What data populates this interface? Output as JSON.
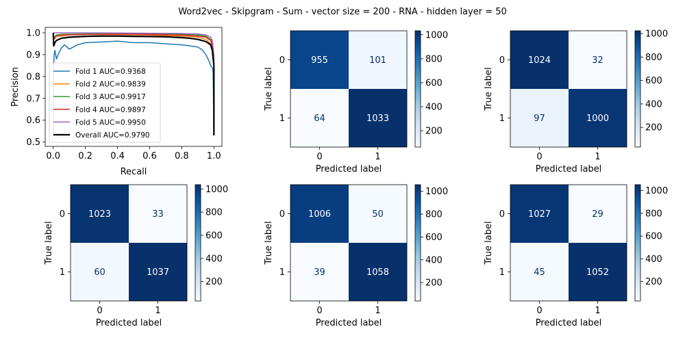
{
  "title": "Word2vec - Skipgram - Sum - vector size = 200 - RNA - hidden layer = 50",
  "chart_data": [
    {
      "type": "line",
      "xlabel": "Recall",
      "ylabel": "Precision",
      "xlim": [
        -0.05,
        1.05
      ],
      "ylim": [
        0.48,
        1.025
      ],
      "xticks": [
        "0.0",
        "0.2",
        "0.4",
        "0.6",
        "0.8",
        "1.0"
      ],
      "yticks": [
        "0.5",
        "0.6",
        "0.7",
        "0.8",
        "0.9",
        "1.0"
      ],
      "legend_position": "lower-left",
      "series": [
        {
          "name": "Fold 1 AUC=0.9368",
          "color": "#1f77b4",
          "x": [
            0.0,
            0.003,
            0.006,
            0.01,
            0.02,
            0.03,
            0.05,
            0.07,
            0.1,
            0.15,
            0.2,
            0.3,
            0.4,
            0.5,
            0.6,
            0.7,
            0.8,
            0.85,
            0.9,
            0.93,
            0.95,
            0.97,
            0.98,
            0.99,
            0.995,
            1.0
          ],
          "y": [
            0.53,
            0.86,
            0.9,
            0.92,
            0.88,
            0.9,
            0.93,
            0.945,
            0.925,
            0.945,
            0.955,
            0.958,
            0.962,
            0.955,
            0.955,
            0.95,
            0.945,
            0.94,
            0.935,
            0.92,
            0.9,
            0.87,
            0.85,
            0.84,
            0.82,
            0.53
          ]
        },
        {
          "name": "Fold 2 AUC=0.9839",
          "color": "#ff7f0e",
          "x": [
            0.0,
            0.005,
            0.02,
            0.05,
            0.1,
            0.2,
            0.4,
            0.6,
            0.8,
            0.9,
            0.95,
            0.98,
            0.99,
            1.0,
            1.0
          ],
          "y": [
            1.0,
            0.97,
            0.985,
            0.985,
            0.99,
            0.992,
            0.992,
            0.99,
            0.985,
            0.98,
            0.97,
            0.95,
            0.93,
            0.85,
            0.53
          ]
        },
        {
          "name": "Fold 3 AUC=0.9917",
          "color": "#2ca02c",
          "x": [
            0.0,
            0.005,
            0.02,
            0.05,
            0.2,
            0.4,
            0.6,
            0.8,
            0.9,
            0.95,
            0.98,
            0.99,
            1.0,
            1.0
          ],
          "y": [
            1.0,
            0.98,
            0.99,
            0.993,
            0.995,
            0.996,
            0.995,
            0.993,
            0.99,
            0.985,
            0.97,
            0.95,
            0.88,
            0.53
          ]
        },
        {
          "name": "Fold 4 AUC=0.9897",
          "color": "#d62728",
          "x": [
            0.0,
            0.005,
            0.02,
            0.05,
            0.2,
            0.4,
            0.6,
            0.8,
            0.9,
            0.95,
            0.98,
            0.99,
            1.0,
            1.0
          ],
          "y": [
            1.0,
            0.97,
            0.985,
            0.99,
            0.993,
            0.994,
            0.993,
            0.99,
            0.985,
            0.98,
            0.965,
            0.94,
            0.86,
            0.53
          ]
        },
        {
          "name": "Fold 5 AUC=0.9950",
          "color": "#9467bd",
          "x": [
            0.0,
            0.01,
            0.05,
            0.2,
            0.4,
            0.6,
            0.8,
            0.9,
            0.95,
            0.98,
            0.99,
            1.0,
            1.0
          ],
          "y": [
            1.0,
            1.0,
            1.0,
            1.0,
            0.999,
            0.998,
            0.997,
            0.995,
            0.99,
            0.98,
            0.965,
            0.9,
            0.53
          ]
        },
        {
          "name": "Overall AUC=0.9790",
          "color": "#000000",
          "x": [
            0.0,
            0.003,
            0.01,
            0.02,
            0.05,
            0.1,
            0.2,
            0.3,
            0.4,
            0.5,
            0.6,
            0.7,
            0.8,
            0.85,
            0.9,
            0.95,
            0.98,
            0.99,
            1.0,
            1.0
          ],
          "y": [
            1.0,
            0.94,
            0.955,
            0.965,
            0.975,
            0.98,
            0.984,
            0.985,
            0.985,
            0.984,
            0.983,
            0.982,
            0.978,
            0.975,
            0.97,
            0.96,
            0.945,
            0.92,
            0.85,
            0.53
          ]
        }
      ]
    },
    {
      "type": "heatmap",
      "xlabel": "Predicted label",
      "ylabel": "True label",
      "categories": [
        "0",
        "1"
      ],
      "values": [
        [
          955,
          101
        ],
        [
          64,
          1033
        ]
      ],
      "colorbar_ticks": [
        200,
        400,
        600,
        800,
        1000
      ]
    },
    {
      "type": "heatmap",
      "xlabel": "Predicted label",
      "ylabel": "True label",
      "categories": [
        "0",
        "1"
      ],
      "values": [
        [
          1024,
          32
        ],
        [
          97,
          1000
        ]
      ],
      "colorbar_ticks": [
        200,
        400,
        600,
        800,
        1000
      ]
    },
    {
      "type": "heatmap",
      "xlabel": "Predicted label",
      "ylabel": "True label",
      "categories": [
        "0",
        "1"
      ],
      "values": [
        [
          1023,
          33
        ],
        [
          60,
          1037
        ]
      ],
      "colorbar_ticks": [
        200,
        400,
        600,
        800,
        1000
      ]
    },
    {
      "type": "heatmap",
      "xlabel": "Predicted label",
      "ylabel": "True label",
      "categories": [
        "0",
        "1"
      ],
      "values": [
        [
          1006,
          50
        ],
        [
          39,
          1058
        ]
      ],
      "colorbar_ticks": [
        200,
        400,
        600,
        800,
        1000
      ]
    },
    {
      "type": "heatmap",
      "xlabel": "Predicted label",
      "ylabel": "True label",
      "categories": [
        "0",
        "1"
      ],
      "values": [
        [
          1027,
          29
        ],
        [
          45,
          1052
        ]
      ],
      "colorbar_ticks": [
        200,
        400,
        600,
        800,
        1000
      ]
    }
  ]
}
